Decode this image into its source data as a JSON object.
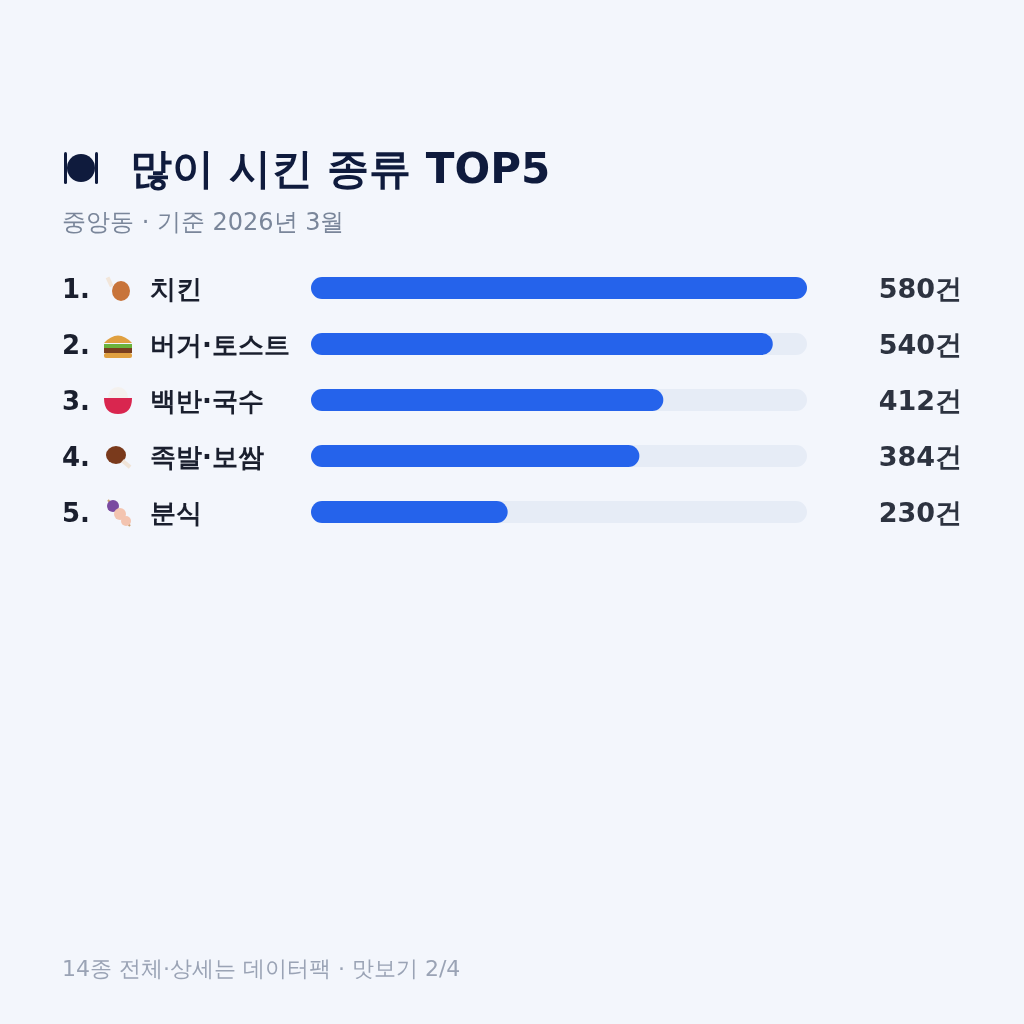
{
  "chart_data": {
    "type": "bar",
    "orientation": "horizontal",
    "title": "많이 시킨 종류 TOP5",
    "subtitle": "중앙동 · 기준 2026년 3월",
    "categories": [
      "1. 치킨",
      "2. 버거·토스트",
      "3. 백반·국수",
      "4. 족발·보쌈",
      "5. 분식"
    ],
    "series": [
      {
        "color": "#2563eb",
        "values": [
          580,
          540,
          412,
          384,
          230
        ],
        "value_labels": [
          "580건",
          "540건",
          "412건",
          "384건",
          "230건"
        ]
      }
    ],
    "annotations": [
      "14종 전체·상세는 데이터팩 · 맛보기 2/4"
    ]
  }
}
